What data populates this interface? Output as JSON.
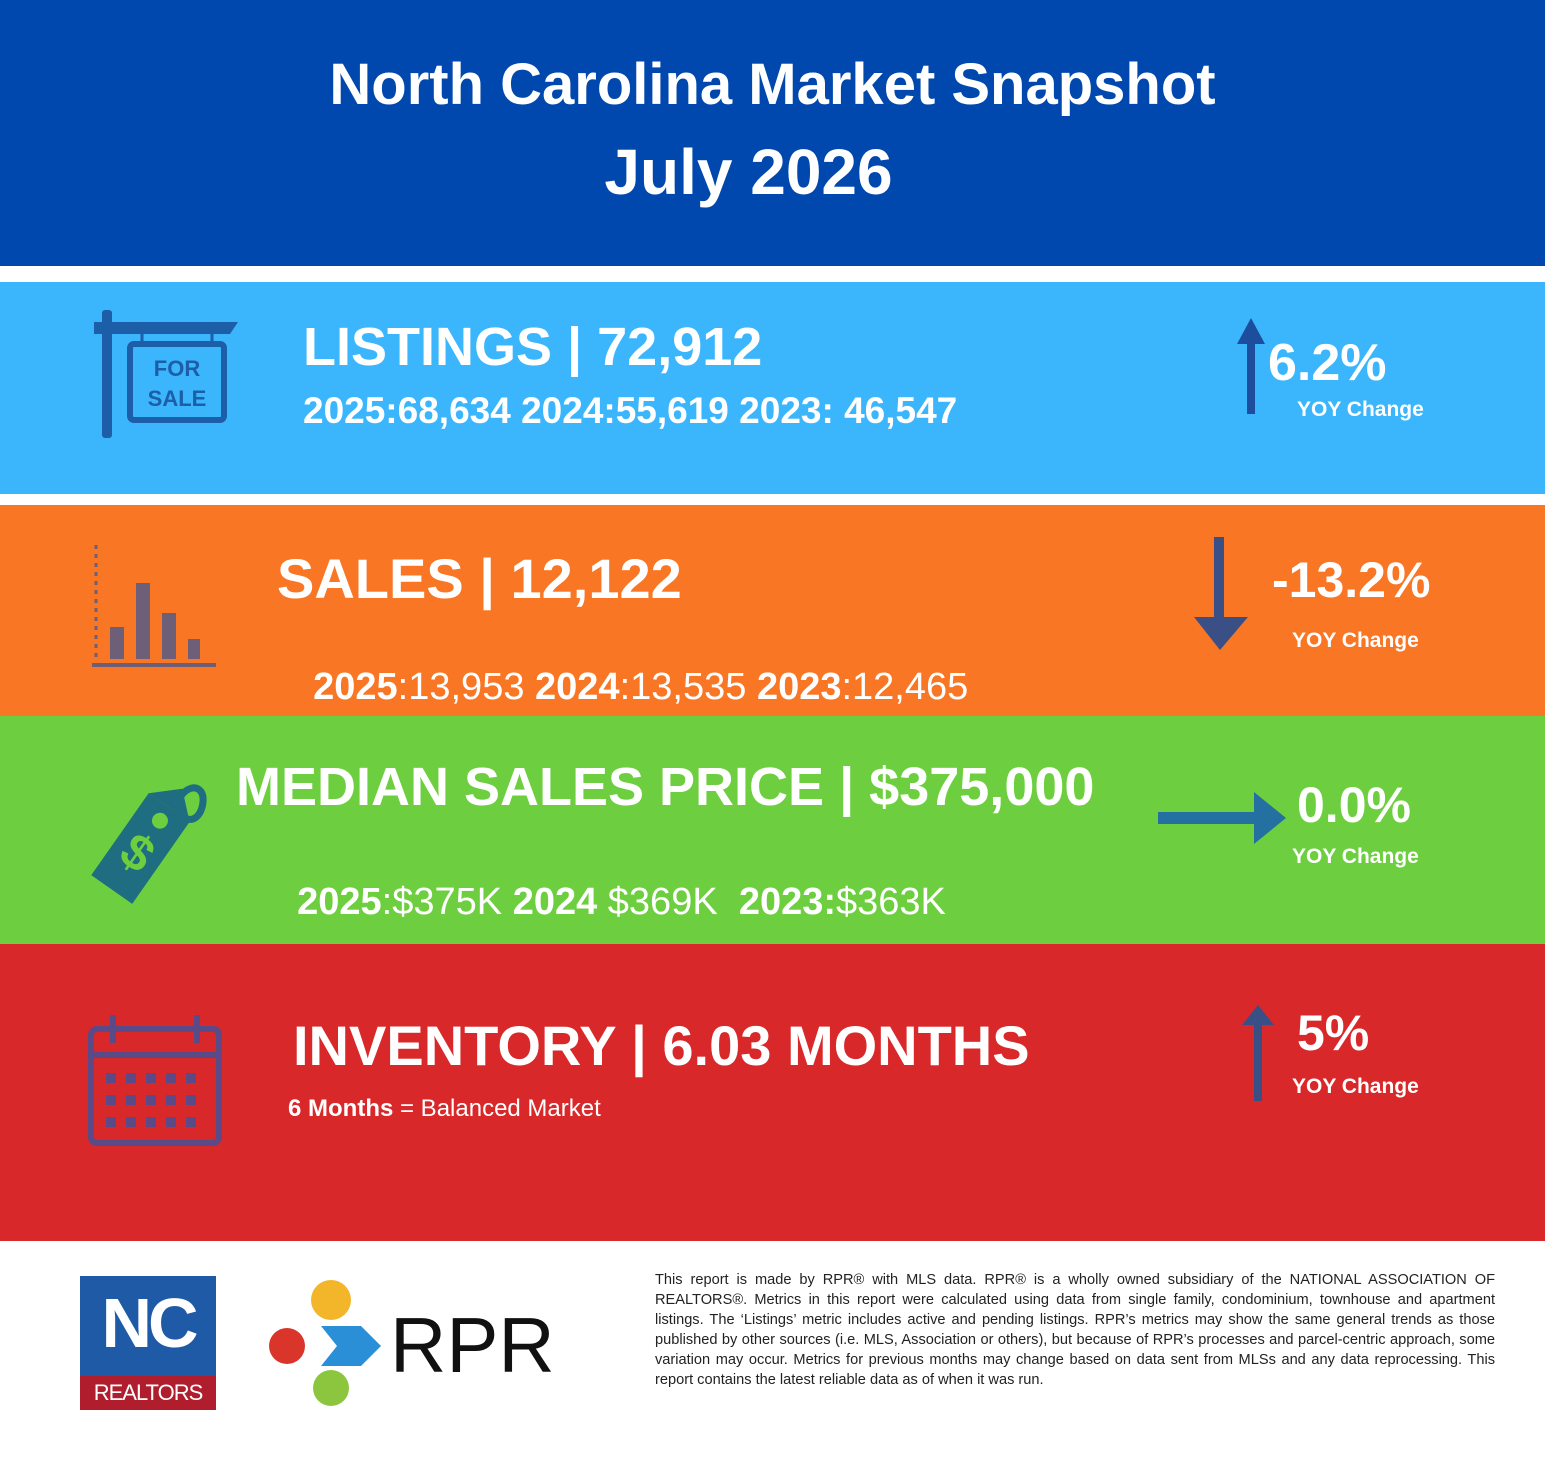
{
  "header": {
    "title": "North Carolina Market Snapshot",
    "subtitle": "July 2026"
  },
  "listings": {
    "headline": "LISTINGS | 72,912",
    "history": "2025:68,634 2024:55,619 2023: 46,547",
    "change": "6.2%",
    "change_label": "YOY Change"
  },
  "sales": {
    "headline": "SALES | 12,122",
    "history": [
      {
        "label": "2025",
        "value": ":13,953"
      },
      {
        "label": "2024",
        "value": ":13,535"
      },
      {
        "label": "2023",
        "value": ":12,465"
      }
    ],
    "change": "-13.2%",
    "change_label": "YOY Change"
  },
  "median_price": {
    "headline": "MEDIAN SALES PRICE | $375,000",
    "history": [
      {
        "label": "2025",
        "value": ":$375K"
      },
      {
        "label": "2024",
        "value": " $369K"
      },
      {
        "label": "2023:",
        "value": "$363K"
      }
    ],
    "change": "0.0%",
    "change_label": "YOY Change"
  },
  "inventory": {
    "headline": "INVENTORY | 6.03 MONTHS",
    "note": {
      "label": "6 Months",
      "value": " = Balanced Market"
    },
    "change": "5%",
    "change_label": "YOY Change"
  },
  "footer": {
    "nc_logo": {
      "mark": "NC",
      "name": "REALTORS"
    },
    "rpr_logo": "RPR",
    "disclaimer": "This report is made by RPR® with MLS data. RPR® is a wholly owned subsidiary of the NATIONAL ASSOCIATION OF REALTORS®. Metrics in this report were calculated using data from single family, condominium, townhouse and apartment listings. The ‘Listings’ metric includes active and pending listings. RPR’s metrics may show the same general trends as those published by other sources (i.e. MLS, Association or others), but because of RPR’s processes and parcel-centric approach, some variation may occur. Metrics for previous months may change based on data sent from MLSs and any data reprocessing. This report contains the latest reliable data as of when it was run."
  }
}
